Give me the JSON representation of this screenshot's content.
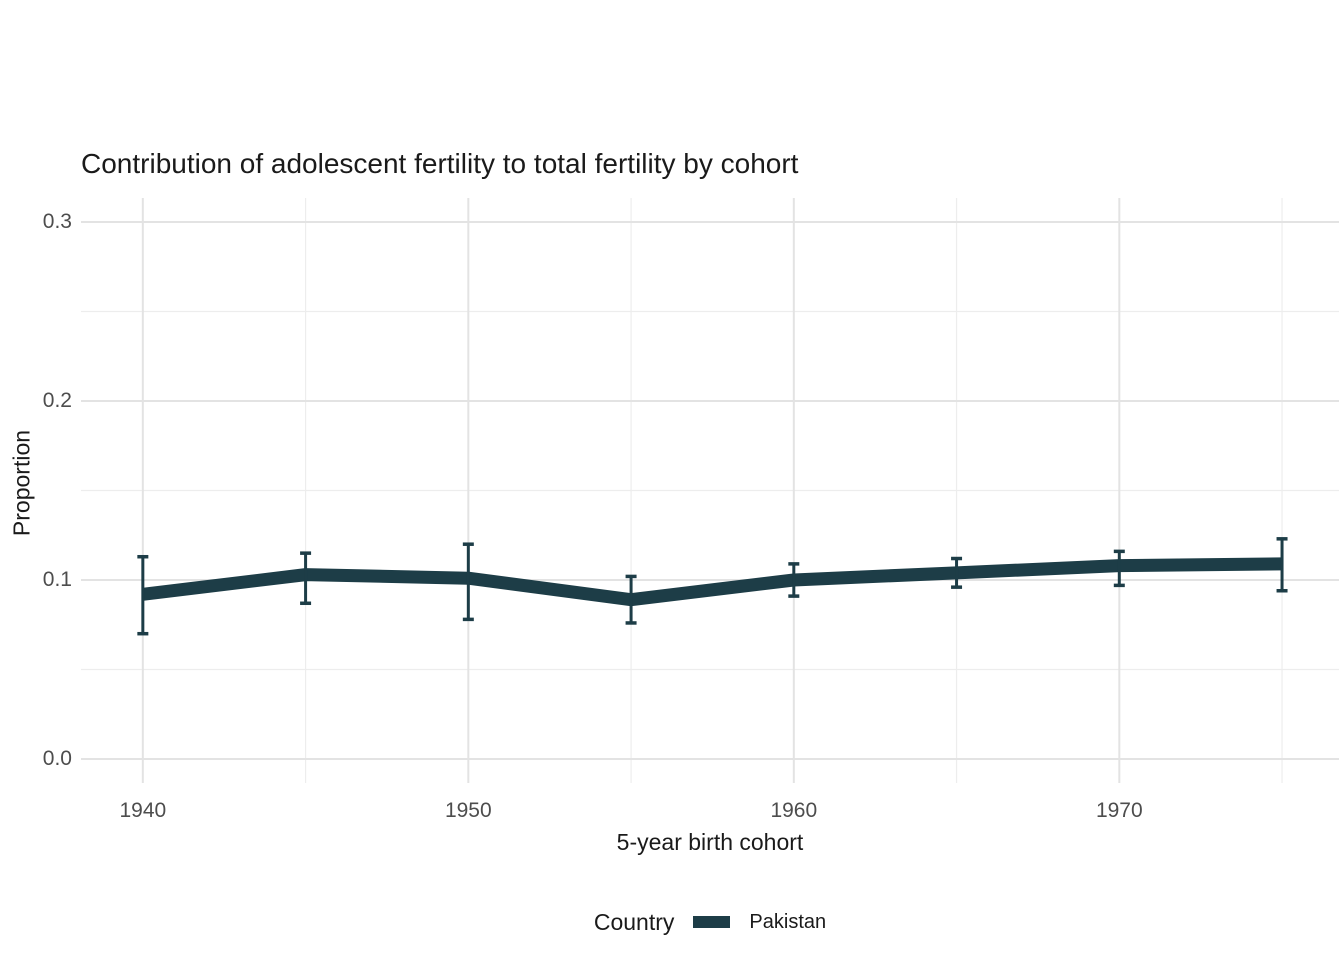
{
  "figure": {
    "title": "Contribution of adolescent fertility to total fertility by cohort",
    "x_axis_title": "5-year birth cohort",
    "y_axis_title": "Proportion",
    "legend": {
      "title": "Country",
      "items": [
        {
          "label": "Pakistan",
          "color": "#1d3d47"
        }
      ],
      "position": "bottom"
    }
  },
  "chart_data": {
    "type": "line",
    "title": "Contribution of adolescent fertility to total fertility by cohort",
    "xlabel": "5-year birth cohort",
    "ylabel": "Proportion",
    "x": [
      1940,
      1945,
      1950,
      1955,
      1960,
      1965,
      1970,
      1975
    ],
    "series": [
      {
        "name": "Pakistan",
        "color": "#1d3d47",
        "values": [
          0.092,
          0.103,
          0.101,
          0.089,
          0.1,
          0.104,
          0.108,
          0.109
        ],
        "error_low": [
          0.07,
          0.087,
          0.078,
          0.076,
          0.091,
          0.096,
          0.097,
          0.094
        ],
        "error_high": [
          0.113,
          0.115,
          0.12,
          0.102,
          0.109,
          0.112,
          0.116,
          0.123
        ]
      }
    ],
    "xlim": [
      1938.1,
      1976.75
    ],
    "ylim": [
      0,
      0.3
    ],
    "x_major_ticks": [
      1940,
      1950,
      1960,
      1970
    ],
    "x_minor_ticks": [
      1945,
      1955,
      1965,
      1975
    ],
    "y_major_ticks": [
      0.0,
      0.1,
      0.2,
      0.3
    ],
    "y_minor_ticks": [
      0.05,
      0.15,
      0.25
    ],
    "y_tick_labels": [
      "0.0",
      "0.1",
      "0.2",
      "0.3"
    ],
    "x_tick_labels": [
      "1940",
      "1950",
      "1960",
      "1970"
    ],
    "grid": true,
    "legend_position": "bottom",
    "grid_major_color": "#e3e3e3",
    "grid_minor_color": "#ededed"
  }
}
